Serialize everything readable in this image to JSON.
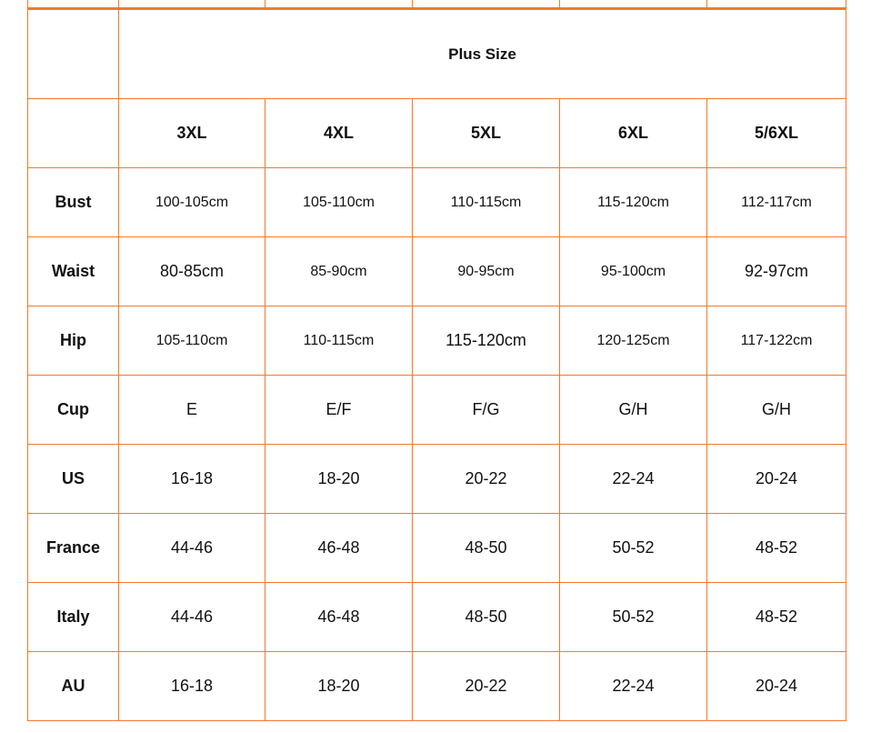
{
  "table": {
    "title": "Plus Size",
    "sizes": [
      "3XL",
      "4XL",
      "5XL",
      "6XL",
      "5/6XL"
    ],
    "rows": [
      {
        "label": "Bust",
        "values": [
          "100-105cm",
          "105-110cm",
          "110-115cm",
          "115-120cm",
          "112-117cm"
        ]
      },
      {
        "label": "Waist",
        "values": [
          "80-85cm",
          "85-90cm",
          "90-95cm",
          "95-100cm",
          "92-97cm"
        ]
      },
      {
        "label": "Hip",
        "values": [
          "105-110cm",
          "110-115cm",
          "115-120cm",
          "120-125cm",
          "117-122cm"
        ]
      },
      {
        "label": "Cup",
        "values": [
          "E",
          "E/F",
          "F/G",
          "G/H",
          "G/H"
        ]
      },
      {
        "label": "US",
        "values": [
          "16-18",
          "18-20",
          "20-22",
          "22-24",
          "20-24"
        ]
      },
      {
        "label": "France",
        "values": [
          "44-46",
          "46-48",
          "48-50",
          "50-52",
          "48-52"
        ]
      },
      {
        "label": "Italy",
        "values": [
          "44-46",
          "46-48",
          "48-50",
          "50-52",
          "48-52"
        ]
      },
      {
        "label": "AU",
        "values": [
          "16-18",
          "18-20",
          "20-22",
          "22-24",
          "20-24"
        ]
      }
    ],
    "border_color": "#f47a2a"
  }
}
